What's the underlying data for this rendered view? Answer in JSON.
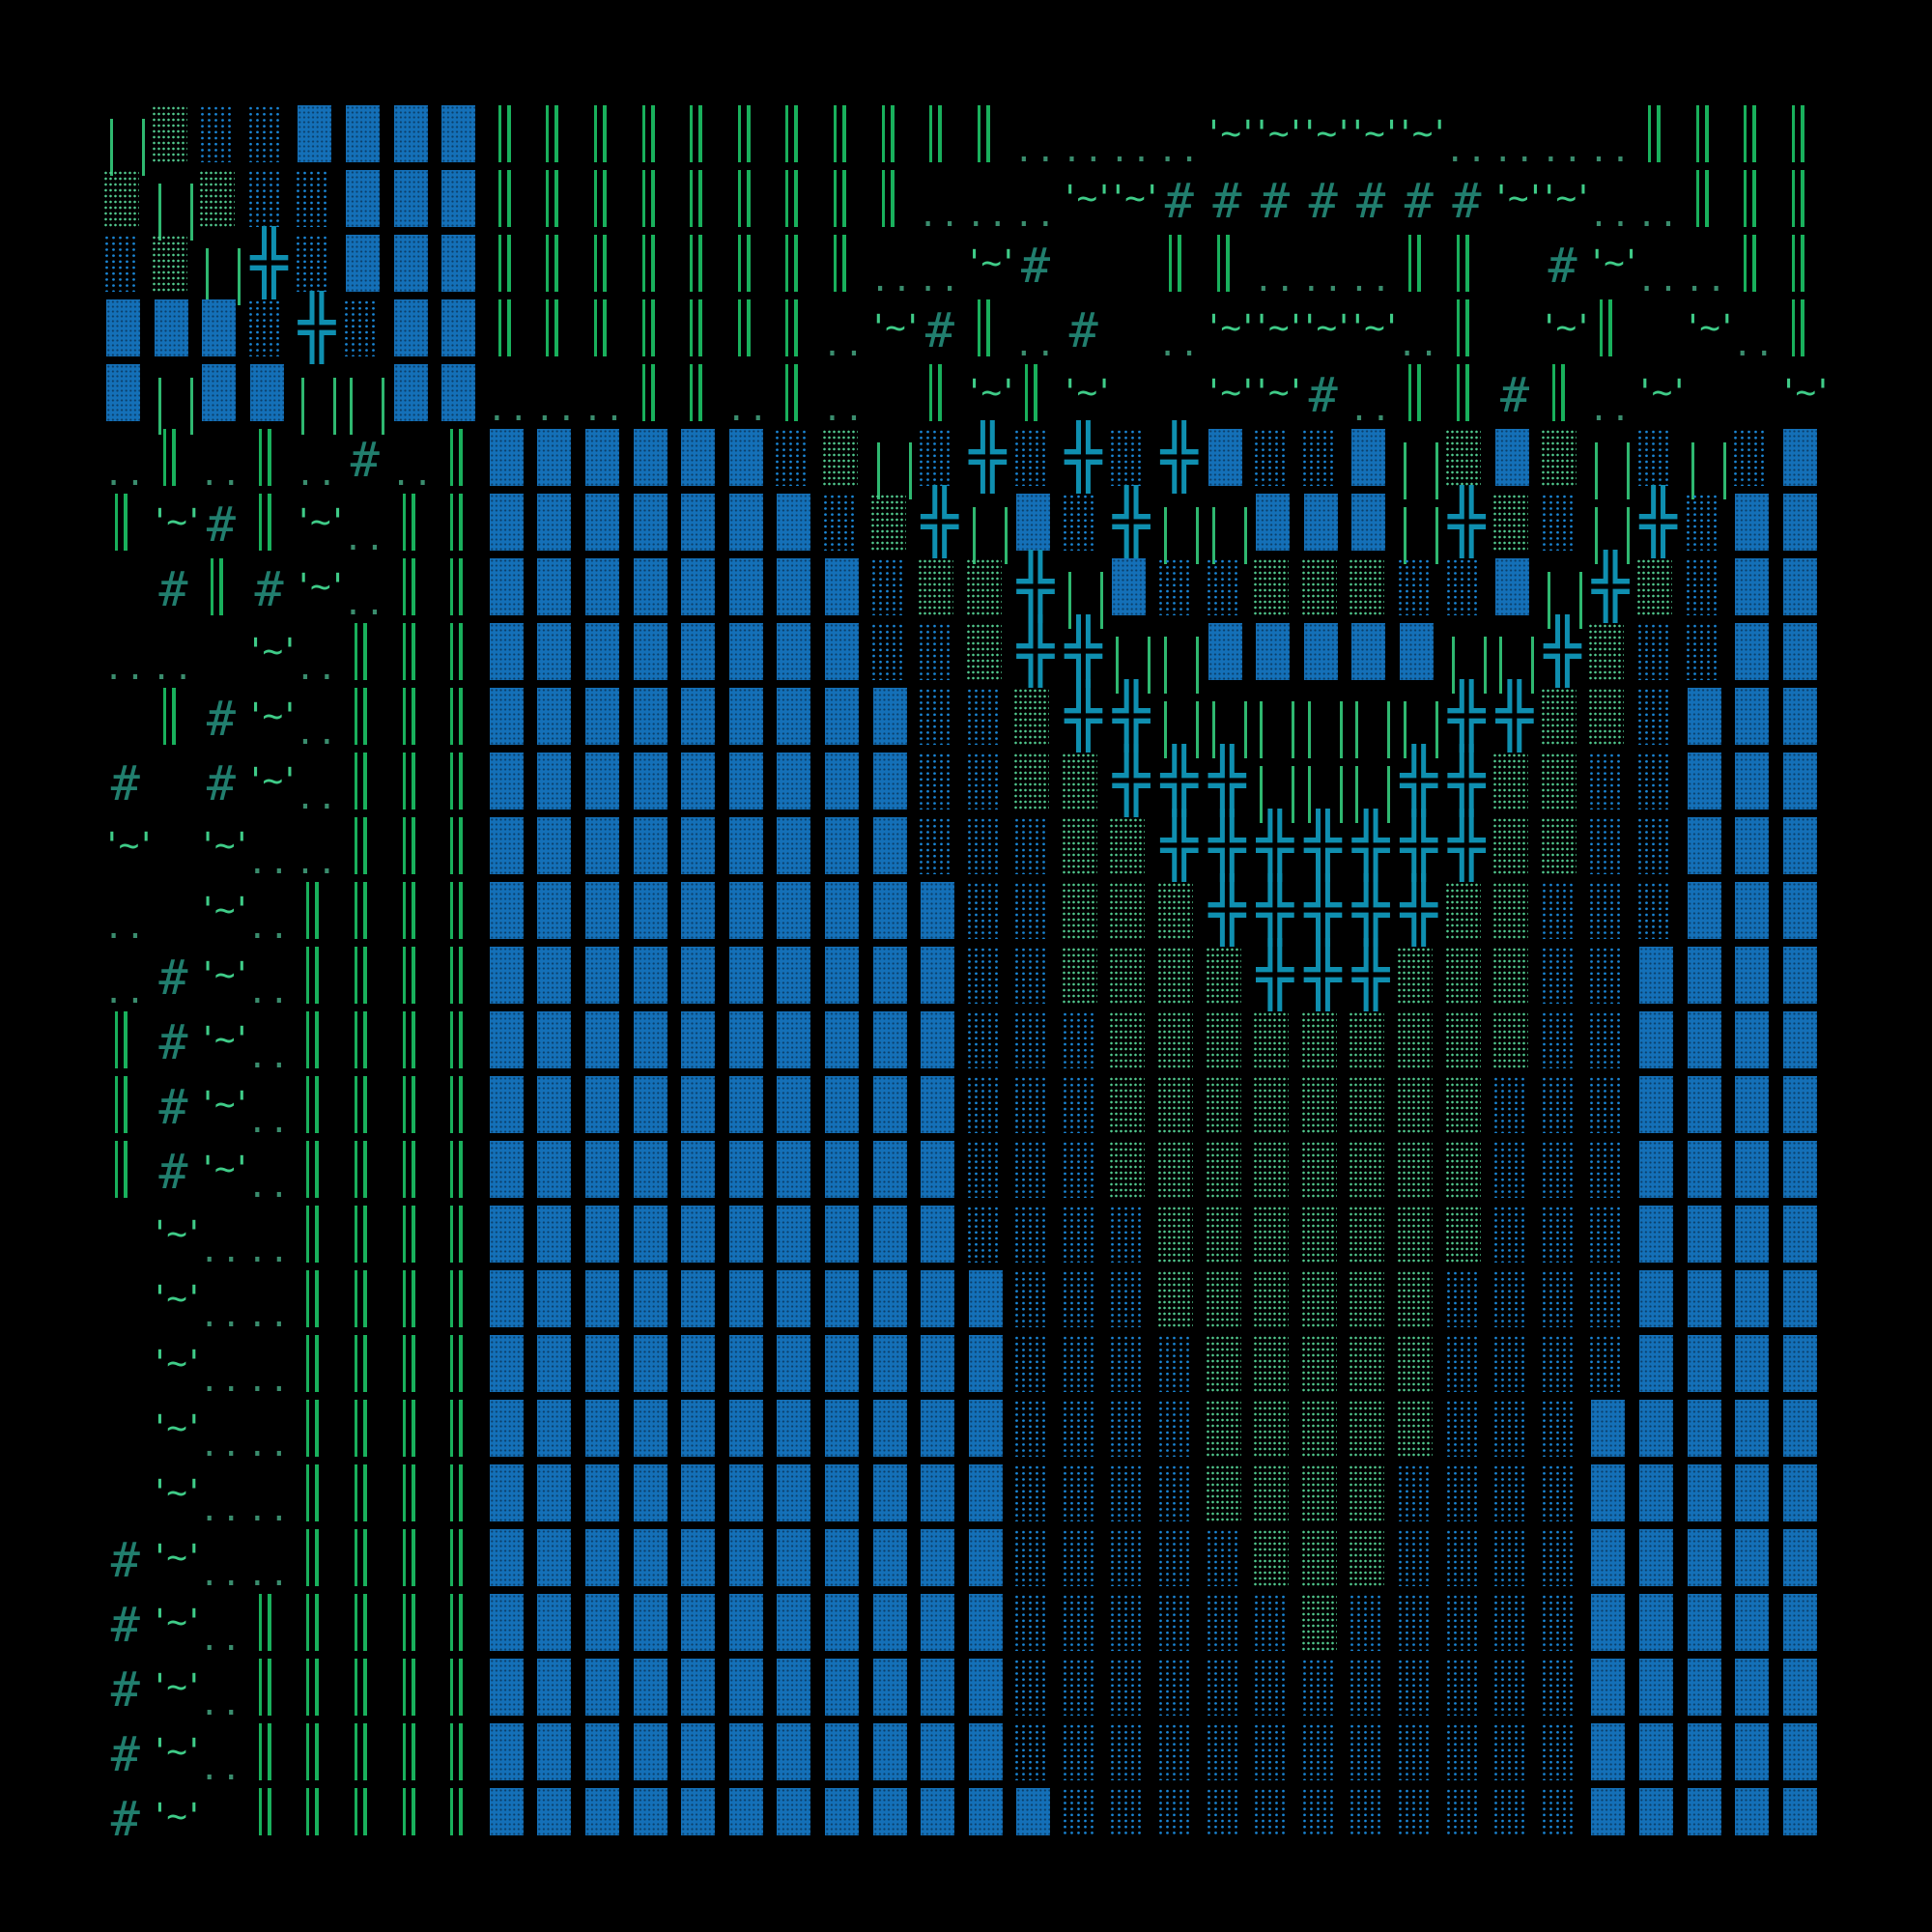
{
  "glyphs": {
    "X": "╬",
    "#": "#",
    "~": "'~'",
    ".": ".."
  },
  "colors": {
    "background": "#000000",
    "dense_blue": "#1470b8",
    "sparse_blue": "#1a86d6",
    "green_dots": "#52c98e",
    "double_line": "#19b05c",
    "cross": "#0f8fb0",
    "hash": "#217e6e",
    "tilde": "#3fcc88",
    "dots": "#3a8d6e"
  },
  "rows": [
    "UgddBBBBHHHHHHHHHHH....~~~~~....HHHH",
    "gUgddBBBHHHHHHHHH...~~#######~~..HHH",
    "dgUXdBBBHHHHHHHH..~#  HH...HH #~..HH",
    "BBBdXdBBHHHHHHH.~#H.# .~~~~.H ~H ~.H",
    "BUBBUUBB...HH.H. H~H~  ~~#.HH#H.~  ~",
    ".H.H.#.HBBBBBBdgUdXdXdXBddBUgBgUdUdB",
    "H~#H~.HHBBBBBBBdgXUBdXUUBBBUXgdUXdBB",
    " #H#~.HHBBBBBBBBdggXUBddgggddBUXgdBB",
    ".. ~.HHHBBBBBBBBddgXXUUBBBBBUUXgddBB",
    " H#~.HHHBBBBBBBBBddgXXUUUUUUXXggdBBB",
    "# #~.HHHBBBBBBBBBddggXXXUUUXXggddBBB",
    "~ ~..HHHBBBBBBBBBdddggXXXXXXXggddBBB",
    ". ~.HHHHBBBBBBBBBBddgggXXXXXggdddBBB",
    ".#~.HHHHBBBBBBBBBBddggggXXXgggddBBBB",
    "H#~.HHHHBBBBBBBBBBdddgggggggggddBBBB",
    "H#~.HHHHBBBBBBBBBBdddggggggggdddBBBB",
    "H#~.HHHHBBBBBBBBBBdddggggggggdddBBBB",
    " ~..HHHHBBBBBBBBBBddddgggggggdddBBBB",
    " ~..HHHHBBBBBBBBBBBdddggggggddddBBBB",
    " ~..HHHHBBBBBBBBBBBddddgggggddddBBBB",
    " ~..HHHHBBBBBBBBBBBddddgggggdddBBBBB",
    " ~..HHHHBBBBBBBBBBBddddggggddddBBBBB",
    "#~..HHHHBBBBBBBBBBBdddddgggddddBBBBB",
    "#~.HHHHHBBBBBBBBBBBddddddgdddddBBBBB",
    "#~.HHHHHBBBBBBBBBBBddddddddddddBBBBB",
    "#~.HHHHHBBBBBBBBBBBddddddddddddBBBBB",
    "#~ HHHHHBBBBBBBBBBBBdddddddddddBBBBB"
  ]
}
